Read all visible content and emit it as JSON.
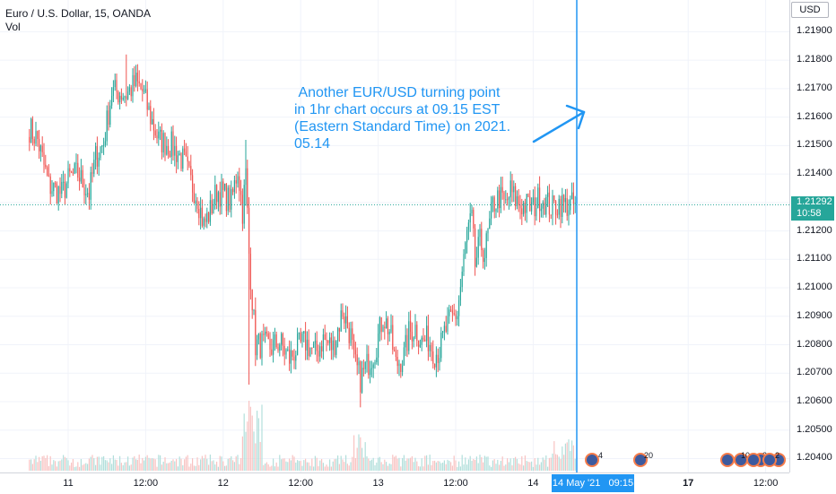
{
  "legend": {
    "symbol": "Euro / U.S. Dollar, 15, OANDA",
    "indicator": "Vol"
  },
  "annotation": {
    "text": " Another EUR/USD turning point\nin 1hr chart occurs at 09.15 EST\n(Eastern Standard Time) on 2021.\n05.14",
    "color": "#2196f3"
  },
  "axis": {
    "currency": "USD",
    "current_price": "1.21292",
    "countdown": "10:58",
    "crosshair_date": "14 May '21   09:15"
  },
  "events": [
    {
      "label": "4"
    },
    {
      "label": "20"
    },
    {
      "label": "10"
    },
    {
      "label": "3"
    },
    {
      "label": "2"
    }
  ],
  "colors": {
    "up": "#26a69a",
    "down": "#ef5350",
    "volume_up": "#b2dfdb",
    "volume_down": "#f8c3c2",
    "vline": "#2196f3"
  },
  "chart_data": {
    "type": "candlestick",
    "title": "Euro / U.S. Dollar, 15, OANDA",
    "ylim": [
      1.2037,
      1.2198
    ],
    "y_ticks": [
      1.219,
      1.218,
      1.217,
      1.216,
      1.215,
      1.214,
      1.213,
      1.212,
      1.211,
      1.21,
      1.209,
      1.208,
      1.207,
      1.206,
      1.205,
      1.204
    ],
    "y_tick_labels": [
      "1.21900",
      "1.21800",
      "1.21700",
      "1.21600",
      "1.21500",
      "1.21400",
      "1.21300",
      "1.21200",
      "1.21100",
      "1.21000",
      "1.20900",
      "1.20800",
      "1.20700",
      "1.20600",
      "1.20500",
      "1.20400"
    ],
    "x_ticks": [
      {
        "t": 0,
        "label": "11",
        "bold": false
      },
      {
        "t": 48,
        "label": "12:00",
        "bold": false
      },
      {
        "t": 96,
        "label": "12",
        "bold": false
      },
      {
        "t": 144,
        "label": "12:00",
        "bold": false
      },
      {
        "t": 192,
        "label": "13",
        "bold": false
      },
      {
        "t": 240,
        "label": "12:00",
        "bold": false
      },
      {
        "t": 288,
        "label": "14",
        "bold": false
      },
      {
        "t": 384,
        "label": "17",
        "bold": true
      },
      {
        "t": 432,
        "label": "12:00",
        "bold": false
      }
    ],
    "current_price": 1.21292,
    "vline_t": 315,
    "waypoints": [
      [
        -24,
        1.2156
      ],
      [
        -19,
        1.2152
      ],
      [
        -12,
        1.2136
      ],
      [
        -4,
        1.2133
      ],
      [
        1,
        1.2139
      ],
      [
        6,
        1.214
      ],
      [
        10,
        1.2136
      ],
      [
        13,
        1.2133
      ],
      [
        17,
        1.2146
      ],
      [
        22,
        1.2151
      ],
      [
        27,
        1.2169
      ],
      [
        36,
        1.2168
      ],
      [
        42,
        1.2172
      ],
      [
        46,
        1.2169
      ],
      [
        51,
        1.216
      ],
      [
        56,
        1.2152
      ],
      [
        64,
        1.215
      ],
      [
        72,
        1.2144
      ],
      [
        76,
        1.2137
      ],
      [
        80,
        1.2132
      ],
      [
        84,
        1.2122
      ],
      [
        88,
        1.2127
      ],
      [
        92,
        1.2134
      ],
      [
        96,
        1.2133
      ],
      [
        101,
        1.213
      ],
      [
        105,
        1.2142
      ],
      [
        108,
        1.2127
      ],
      [
        110,
        1.214
      ],
      [
        112,
        1.2112
      ],
      [
        116,
        1.208
      ],
      [
        120,
        1.208
      ],
      [
        126,
        1.2079
      ],
      [
        131,
        1.2081
      ],
      [
        137,
        1.2075
      ],
      [
        142,
        1.2079
      ],
      [
        147,
        1.2081
      ],
      [
        153,
        1.2077
      ],
      [
        158,
        1.2082
      ],
      [
        164,
        1.2079
      ],
      [
        170,
        1.2092
      ],
      [
        175,
        1.2083
      ],
      [
        177,
        1.2074
      ],
      [
        181,
        1.2068
      ],
      [
        186,
        1.2074
      ],
      [
        190,
        1.2078
      ],
      [
        195,
        1.209
      ],
      [
        199,
        1.2085
      ],
      [
        203,
        1.2073
      ],
      [
        208,
        1.2076
      ],
      [
        211,
        1.2084
      ],
      [
        215,
        1.2086
      ],
      [
        219,
        1.2081
      ],
      [
        223,
        1.2082
      ],
      [
        227,
        1.2077
      ],
      [
        230,
        1.2078
      ],
      [
        233,
        1.2084
      ],
      [
        237,
        1.2089
      ],
      [
        241,
        1.2091
      ],
      [
        244,
        1.2105
      ],
      [
        247,
        1.2119
      ],
      [
        250,
        1.2124
      ],
      [
        252,
        1.2108
      ],
      [
        255,
        1.2116
      ],
      [
        258,
        1.2112
      ],
      [
        261,
        1.2122
      ],
      [
        263,
        1.2129
      ],
      [
        267,
        1.2132
      ],
      [
        271,
        1.2129
      ],
      [
        274,
        1.2134
      ],
      [
        277,
        1.2131
      ],
      [
        280,
        1.2129
      ],
      [
        284,
        1.2129
      ],
      [
        288,
        1.2128
      ],
      [
        292,
        1.2132
      ],
      [
        296,
        1.213
      ],
      [
        300,
        1.2128
      ],
      [
        304,
        1.213
      ],
      [
        308,
        1.2129
      ],
      [
        315,
        1.2129
      ]
    ]
  }
}
